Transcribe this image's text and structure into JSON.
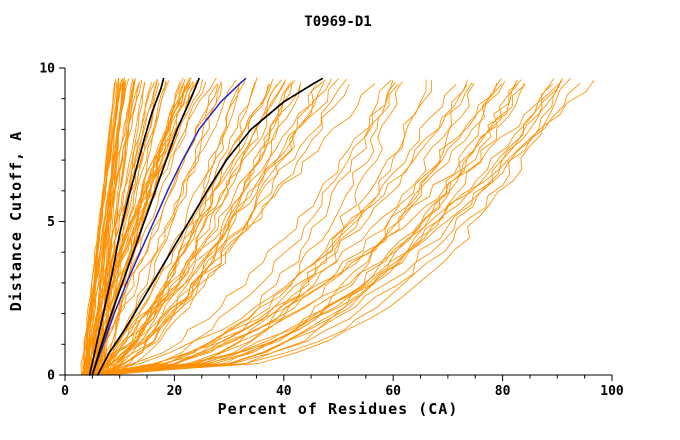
{
  "chart_data": {
    "type": "line",
    "title": "T0969-D1",
    "xlabel": "Percent of Residues (CA)",
    "ylabel": "Distance Cutoff, A",
    "xlim": [
      0,
      100
    ],
    "ylim": [
      0,
      10
    ],
    "x_major_ticks": [
      0,
      20,
      40,
      60,
      80,
      100
    ],
    "x_minor_step": 5,
    "y_major_ticks": [
      0,
      5,
      10
    ],
    "y_minor_step": 1,
    "grid": false,
    "legend": "none",
    "axis_color": "#000000",
    "ensemble": {
      "name": "predicted-model-curves",
      "color": "#FF9000",
      "count": 115,
      "seed": 1337,
      "stroke_width": 0.85,
      "x_start_range": [
        3,
        8
      ],
      "x_top_buckets": [
        {
          "range": [
            9,
            28
          ],
          "weight": 0.42
        },
        {
          "range": [
            28,
            58
          ],
          "weight": 0.28
        },
        {
          "range": [
            58,
            97
          ],
          "weight": 0.3
        }
      ],
      "y_top": 9.7
    },
    "highlighted_series": [
      {
        "name": "highlight-blue",
        "color": "#2222CC",
        "width": 1.5,
        "points": [
          [
            5,
            0
          ],
          [
            6.8,
            0.9
          ],
          [
            9,
            2
          ],
          [
            11.5,
            3.1
          ],
          [
            14,
            4.1
          ],
          [
            16.5,
            5.1
          ],
          [
            19,
            6.1
          ],
          [
            21.5,
            7
          ],
          [
            24.5,
            8
          ],
          [
            28.5,
            8.9
          ],
          [
            32,
            9.5
          ],
          [
            33,
            9.65
          ]
        ]
      },
      {
        "name": "highlight-black-1",
        "color": "#000000",
        "width": 1.7,
        "points": [
          [
            4.5,
            0
          ],
          [
            5.5,
            0.8
          ],
          [
            7,
            2
          ],
          [
            8.5,
            3.2
          ],
          [
            10,
            4.6
          ],
          [
            11.5,
            5.7
          ],
          [
            13,
            6.7
          ],
          [
            14.5,
            7.7
          ],
          [
            16,
            8.6
          ],
          [
            17.5,
            9.3
          ],
          [
            18,
            9.65
          ]
        ]
      },
      {
        "name": "highlight-black-2",
        "color": "#000000",
        "width": 1.7,
        "points": [
          [
            5,
            0
          ],
          [
            6.5,
            0.9
          ],
          [
            8.5,
            2
          ],
          [
            10.5,
            3
          ],
          [
            12.5,
            4
          ],
          [
            14.5,
            5
          ],
          [
            16.5,
            6
          ],
          [
            18.5,
            7
          ],
          [
            20.5,
            8
          ],
          [
            23,
            9
          ],
          [
            24.5,
            9.65
          ]
        ]
      },
      {
        "name": "highlight-black-3",
        "color": "#000000",
        "width": 1.7,
        "points": [
          [
            6,
            0
          ],
          [
            8,
            0.7
          ],
          [
            11,
            1.5
          ],
          [
            14,
            2.4
          ],
          [
            17,
            3.3
          ],
          [
            20,
            4.2
          ],
          [
            23,
            5.1
          ],
          [
            26,
            6
          ],
          [
            29.5,
            7
          ],
          [
            34,
            8
          ],
          [
            40,
            8.9
          ],
          [
            45.5,
            9.5
          ],
          [
            47,
            9.65
          ]
        ]
      }
    ]
  }
}
